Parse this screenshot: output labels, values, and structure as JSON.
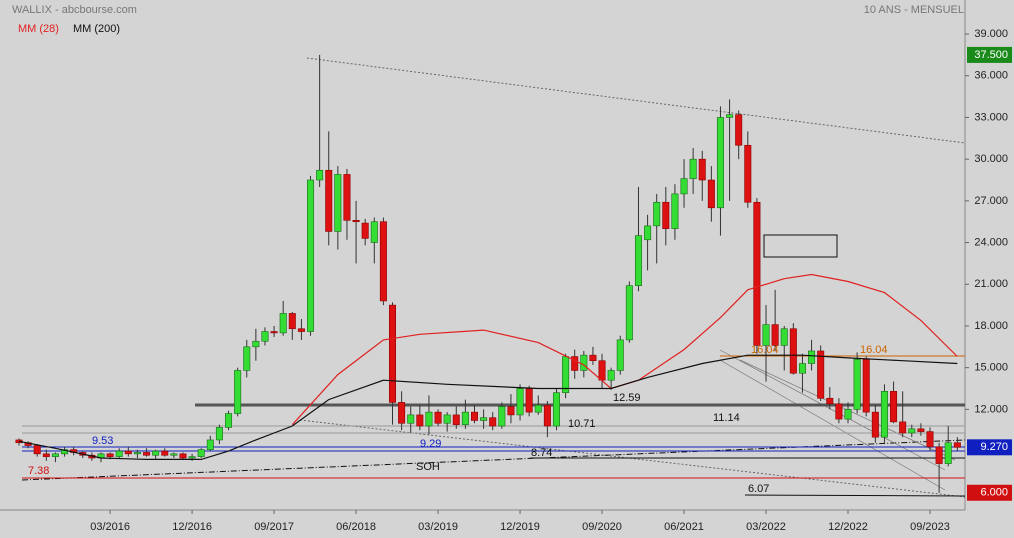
{
  "chart_data": {
    "type": "candlestick",
    "title": "WALLIX - abcbourse.com",
    "subtitle": "10 ANS - MENSUEL",
    "categories": [
      null,
      null,
      null,
      null,
      null,
      null,
      null,
      null,
      null,
      null,
      "03/2016",
      null,
      null,
      null,
      null,
      null,
      null,
      null,
      null,
      "12/2016",
      null,
      null,
      null,
      null,
      null,
      null,
      null,
      null,
      "09/2017",
      null,
      null,
      null,
      null,
      null,
      null,
      null,
      null,
      "06/2018",
      null,
      null,
      null,
      null,
      null,
      null,
      null,
      null,
      "03/2019",
      null,
      null,
      null,
      null,
      null,
      null,
      null,
      null,
      "12/2019",
      null,
      null,
      null,
      null,
      null,
      null,
      null,
      null,
      "09/2020",
      null,
      null,
      null,
      null,
      null,
      null,
      null,
      null,
      "06/2021",
      null,
      null,
      null,
      null,
      null,
      null,
      null,
      null,
      "03/2022",
      null,
      null,
      null,
      null,
      null,
      null,
      null,
      null,
      "12/2022",
      null,
      null,
      null,
      null,
      null,
      null,
      null,
      null,
      "09/2023",
      null,
      null,
      null
    ],
    "open": [
      9.8,
      9.6,
      9.4,
      8.8,
      8.6,
      8.8,
      9.1,
      8.9,
      8.7,
      8.5,
      8.8,
      8.6,
      9.0,
      8.8,
      8.9,
      8.7,
      9.0,
      8.7,
      8.8,
      8.5,
      8.6,
      9.1,
      9.8,
      10.7,
      11.7,
      14.8,
      16.5,
      16.9,
      17.6,
      17.5,
      18.9,
      17.8,
      17.6,
      28.5,
      29.2,
      24.8,
      28.9,
      25.6,
      25.4,
      24.0,
      25.5,
      19.5,
      12.5,
      11.0,
      11.6,
      10.8,
      11.8,
      11.0,
      11.6,
      10.9,
      11.8,
      11.2,
      11.4,
      10.8,
      12.2,
      11.6,
      13.5,
      11.8,
      12.3,
      10.8,
      13.2,
      15.8,
      14.8,
      15.9,
      15.5,
      14.1,
      14.8,
      17.0,
      20.9,
      24.2,
      25.2,
      26.9,
      25.0,
      27.5,
      28.6,
      30.0,
      28.5,
      26.5,
      33.0,
      33.2,
      31.0,
      26.9,
      16.6,
      18.1,
      16.6,
      17.8,
      14.6,
      15.3,
      16.2,
      12.8,
      12.4,
      11.3,
      12.0,
      15.6,
      11.8,
      10.0,
      13.3,
      11.1,
      10.3,
      10.6,
      10.4,
      9.3,
      8.1,
      9.6
    ],
    "high": [
      9.9,
      9.7,
      9.5,
      9.1,
      8.9,
      9.3,
      9.3,
      9.0,
      8.9,
      8.9,
      8.9,
      9.2,
      9.3,
      9.1,
      9.2,
      9.1,
      9.2,
      8.9,
      8.9,
      8.8,
      9.2,
      10.1,
      10.9,
      11.9,
      15.0,
      17.0,
      17.8,
      17.9,
      18.0,
      19.8,
      19.0,
      18.5,
      28.8,
      37.5,
      32.0,
      29.5,
      29.3,
      27.0,
      25.7,
      25.8,
      25.8,
      19.7,
      13.3,
      12.2,
      12.3,
      13.0,
      12.0,
      11.8,
      12.2,
      12.7,
      12.3,
      12.0,
      11.8,
      12.5,
      13.1,
      13.8,
      13.7,
      13.0,
      12.6,
      13.5,
      16.0,
      16.3,
      16.2,
      16.5,
      16.0,
      15.0,
      17.3,
      21.2,
      28.0,
      26.0,
      27.5,
      28.0,
      28.2,
      30.0,
      30.8,
      30.6,
      29.5,
      33.8,
      34.3,
      33.5,
      32.0,
      27.2,
      19.5,
      20.6,
      18.0,
      18.2,
      16.0,
      17.0,
      16.6,
      13.6,
      12.8,
      12.5,
      16.1,
      15.8,
      12.3,
      13.8,
      14.0,
      13.3,
      10.9,
      11.0,
      10.7,
      9.6,
      10.8,
      10.0
    ],
    "low": [
      9.4,
      9.2,
      8.6,
      8.3,
      8.2,
      8.6,
      8.7,
      8.5,
      8.3,
      8.2,
      8.4,
      8.5,
      8.6,
      8.5,
      8.6,
      8.4,
      8.6,
      8.5,
      8.4,
      8.3,
      8.5,
      9.0,
      9.5,
      10.5,
      11.5,
      14.3,
      15.5,
      16.6,
      17.2,
      17.3,
      17.0,
      17.0,
      17.3,
      28.0,
      23.8,
      23.5,
      24.2,
      22.5,
      23.8,
      22.5,
      19.5,
      10.9,
      10.5,
      10.3,
      10.5,
      10.2,
      10.8,
      10.4,
      10.6,
      10.6,
      11.0,
      10.6,
      10.5,
      10.6,
      11.0,
      11.2,
      11.5,
      11.6,
      10.0,
      10.5,
      12.8,
      14.2,
      14.3,
      15.2,
      13.5,
      13.4,
      14.5,
      16.8,
      20.5,
      22.0,
      22.5,
      23.8,
      24.2,
      26.5,
      27.5,
      27.0,
      25.5,
      24.5,
      27.0,
      30.0,
      26.5,
      16.0,
      14.0,
      16.2,
      14.8,
      14.5,
      13.2,
      14.8,
      12.6,
      12.0,
      11.0,
      11.0,
      11.7,
      11.5,
      9.6,
      9.6,
      11.0,
      10.0,
      10.0,
      10.1,
      9.0,
      6.0,
      7.9,
      9.0
    ],
    "close": [
      9.6,
      9.4,
      8.8,
      8.6,
      8.8,
      9.1,
      8.9,
      8.7,
      8.5,
      8.8,
      8.6,
      9.0,
      8.8,
      8.9,
      8.7,
      9.0,
      8.7,
      8.8,
      8.5,
      8.6,
      9.1,
      9.8,
      10.7,
      11.7,
      14.8,
      16.5,
      16.9,
      17.6,
      17.5,
      18.9,
      17.8,
      17.6,
      28.5,
      29.2,
      24.8,
      28.9,
      25.6,
      25.5,
      24.3,
      25.5,
      19.8,
      12.5,
      11.0,
      11.6,
      10.8,
      11.8,
      11.0,
      11.6,
      10.9,
      11.8,
      11.2,
      11.4,
      10.8,
      12.2,
      11.6,
      13.5,
      11.8,
      12.3,
      10.8,
      13.2,
      15.8,
      14.8,
      15.9,
      15.5,
      14.1,
      14.8,
      17.0,
      20.9,
      24.5,
      25.2,
      26.9,
      25.0,
      27.5,
      28.6,
      30.0,
      28.5,
      26.5,
      33.0,
      33.2,
      31.0,
      26.9,
      16.6,
      18.1,
      16.6,
      17.8,
      14.6,
      15.3,
      16.2,
      12.8,
      12.4,
      11.3,
      12.0,
      15.6,
      11.8,
      10.0,
      13.3,
      11.1,
      10.3,
      10.6,
      10.4,
      9.3,
      8.1,
      9.6,
      9.27
    ],
    "up_color": "#33dd33",
    "down_color": "#dd1111",
    "series": [
      {
        "name": "MM (28)",
        "color": "#e02020",
        "x": [
          30,
          35,
          40,
          44,
          51,
          57,
          62,
          65,
          68,
          73,
          77,
          80,
          84,
          87,
          91,
          95,
          99,
          103
        ],
        "values": [
          10.9,
          14.5,
          17.0,
          17.4,
          17.7,
          16.8,
          15.2,
          13.5,
          14.1,
          16.3,
          18.6,
          20.6,
          21.4,
          21.7,
          21.2,
          20.4,
          18.4,
          15.8
        ]
      },
      {
        "name": "MM (200)",
        "color": "#111111",
        "x": [
          0,
          4,
          9,
          14,
          20,
          23,
          26,
          30,
          34,
          40,
          47,
          57,
          65,
          69,
          75,
          80,
          86,
          91,
          97,
          103
        ],
        "values": [
          9.7,
          9.2,
          8.5,
          8.4,
          8.4,
          9.0,
          9.8,
          10.8,
          12.7,
          14.1,
          13.8,
          13.5,
          13.5,
          14.3,
          15.3,
          15.9,
          15.9,
          15.7,
          15.5,
          15.3
        ]
      }
    ],
    "ylim": [
      4.76,
      41.45
    ],
    "yticks": [
      {
        "value": 39,
        "label": "39.000"
      },
      {
        "value": 36,
        "label": "36.000"
      },
      {
        "value": 33,
        "label": "33.000"
      },
      {
        "value": 30,
        "label": "30.000"
      },
      {
        "value": 27,
        "label": "27.000"
      },
      {
        "value": 24,
        "label": "24.000"
      },
      {
        "value": 21,
        "label": "21.000"
      },
      {
        "value": 18,
        "label": "18.000"
      },
      {
        "value": 15,
        "label": "15.000"
      },
      {
        "value": 12,
        "label": "12.000"
      }
    ],
    "markers": [
      {
        "value": 37.5,
        "label": "37.500",
        "color": "#1a8a1a"
      },
      {
        "value": 9.27,
        "label": "9.270",
        "color": "#1020c0"
      },
      {
        "value": 6,
        "label": "6.000",
        "color": "#d01010"
      }
    ],
    "annotations": [
      {
        "text": "9.53",
        "color": "#1020c0"
      },
      {
        "text": "7.38",
        "color": "#d01010"
      },
      {
        "text": "9.29",
        "color": "#1020c0"
      },
      {
        "text": "SOH",
        "color": "#111111"
      },
      {
        "text": "8.74",
        "color": "#111111"
      },
      {
        "text": "10.71",
        "color": "#111111"
      },
      {
        "text": "12.59",
        "color": "#111111"
      },
      {
        "text": "11.14",
        "color": "#111111"
      },
      {
        "text": "6.07",
        "color": "#111111"
      },
      {
        "text": "16.04",
        "color": "#cc6600"
      },
      {
        "text": "16.04",
        "color": "#cc6600"
      }
    ]
  }
}
